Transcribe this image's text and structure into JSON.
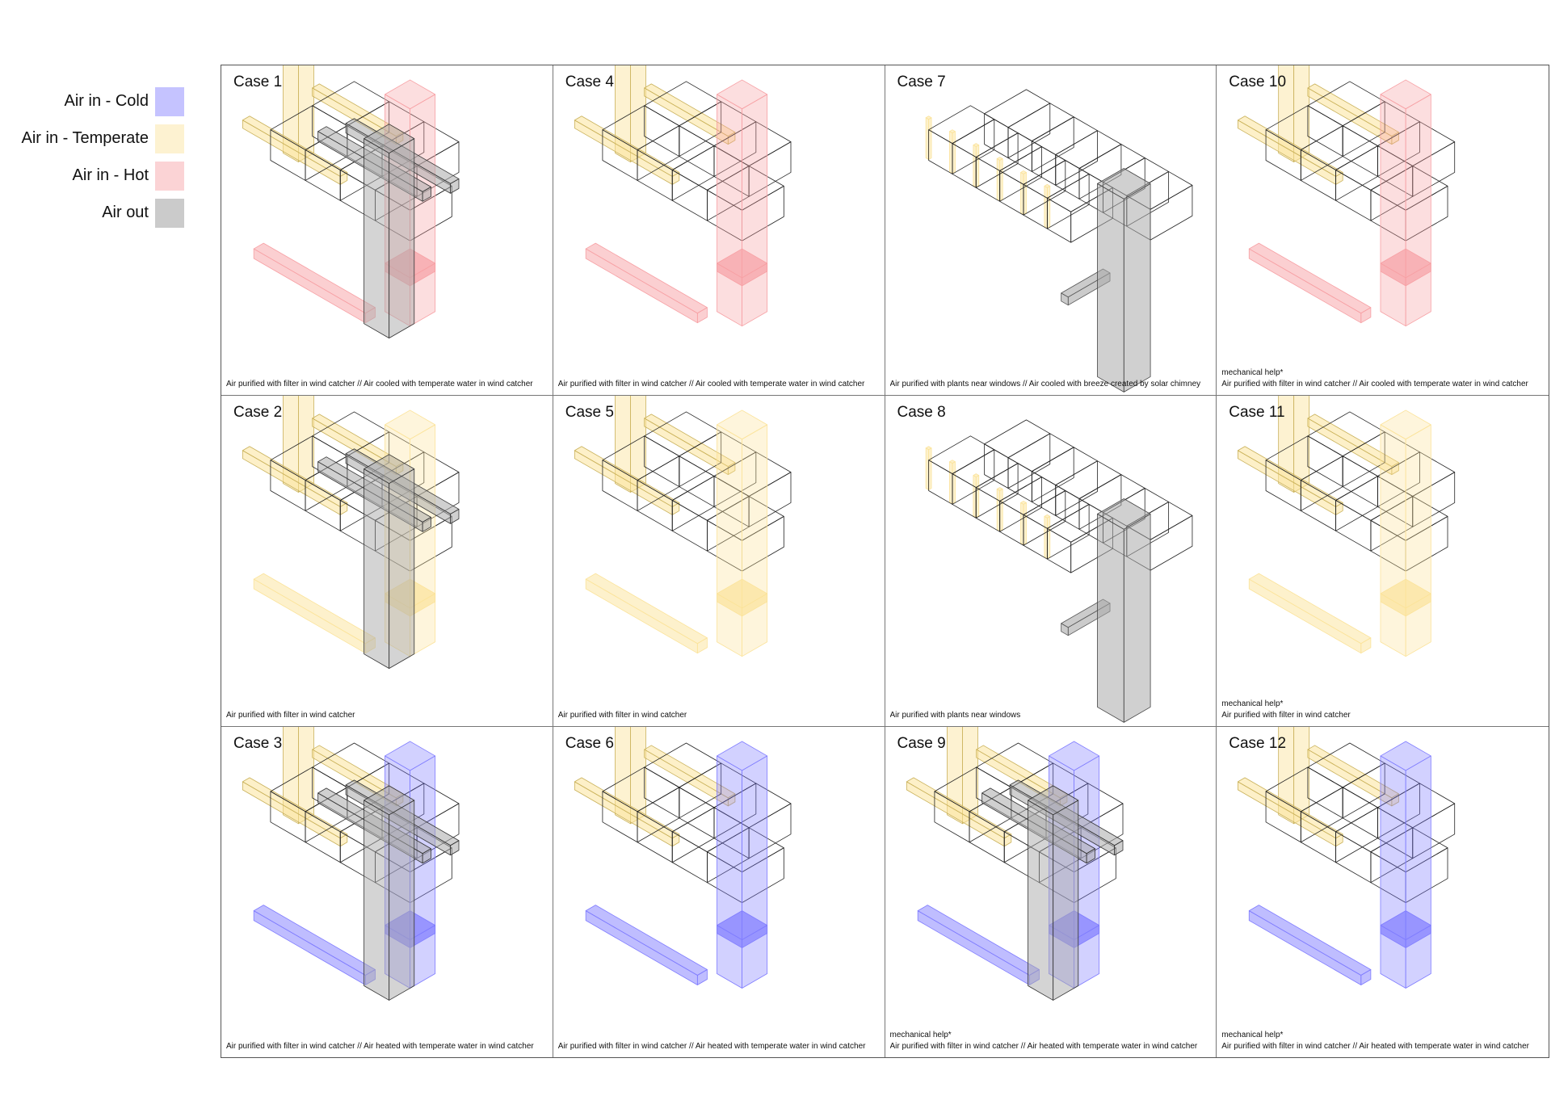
{
  "colors": {
    "cold": "#7f7cff",
    "temperate": "#fbe39a",
    "hot": "#f7a0a4",
    "out": "#a9a9a9"
  },
  "legend": [
    {
      "label": "Air in - Cold",
      "key": "cold",
      "icon": "cold-swatch"
    },
    {
      "label": "Air in - Temperate",
      "key": "temperate",
      "icon": "temperate-swatch"
    },
    {
      "label": "Air in - Hot",
      "key": "hot",
      "icon": "hot-swatch"
    },
    {
      "label": "Air out",
      "key": "out",
      "icon": "out-swatch"
    }
  ],
  "cases": [
    {
      "title": "Case 1",
      "shaft": "hot",
      "out": true,
      "variant": "std",
      "note": "",
      "caption": "Air purified with filter in wind catcher // Air cooled with temperate water in wind catcher"
    },
    {
      "title": "Case 4",
      "shaft": "hot",
      "out": false,
      "variant": "std",
      "note": "",
      "caption": "Air purified with filter in wind catcher // Air cooled with temperate water in wind catcher"
    },
    {
      "title": "Case 7",
      "shaft": "none",
      "out": true,
      "variant": "plants",
      "note": "",
      "caption": "Air purified with plants near windows // Air cooled with breeze created by solar chimney"
    },
    {
      "title": "Case 10",
      "shaft": "hot",
      "out": false,
      "variant": "std",
      "note": "mechanical help*",
      "caption": "Air purified with filter in wind catcher // Air cooled with temperate water in wind catcher"
    },
    {
      "title": "Case 2",
      "shaft": "temperate",
      "out": true,
      "variant": "std",
      "note": "",
      "caption": "Air purified with filter in wind catcher"
    },
    {
      "title": "Case 5",
      "shaft": "temperate",
      "out": false,
      "variant": "std",
      "note": "",
      "caption": "Air purified with filter in wind catcher"
    },
    {
      "title": "Case 8",
      "shaft": "none",
      "out": true,
      "variant": "plants",
      "note": "",
      "caption": "Air purified with plants near windows"
    },
    {
      "title": "Case 11",
      "shaft": "temperate",
      "out": false,
      "variant": "std",
      "note": "mechanical help*",
      "caption": "Air purified with filter in wind catcher"
    },
    {
      "title": "Case 3",
      "shaft": "cold",
      "out": true,
      "variant": "std",
      "note": "",
      "caption": "Air purified with filter in wind catcher // Air heated with temperate water in wind catcher"
    },
    {
      "title": "Case 6",
      "shaft": "cold",
      "out": false,
      "variant": "std",
      "note": "",
      "caption": "Air purified with filter in wind catcher // Air heated with temperate water in wind catcher"
    },
    {
      "title": "Case 9",
      "shaft": "cold",
      "out": true,
      "variant": "std",
      "note": "mechanical help*",
      "caption": "Air purified with filter in wind catcher // Air heated with temperate water in wind catcher"
    },
    {
      "title": "Case 12",
      "shaft": "cold",
      "out": false,
      "variant": "std",
      "note": "mechanical help*",
      "caption": "Air purified with filter in wind catcher // Air heated with temperate water in wind catcher"
    }
  ]
}
